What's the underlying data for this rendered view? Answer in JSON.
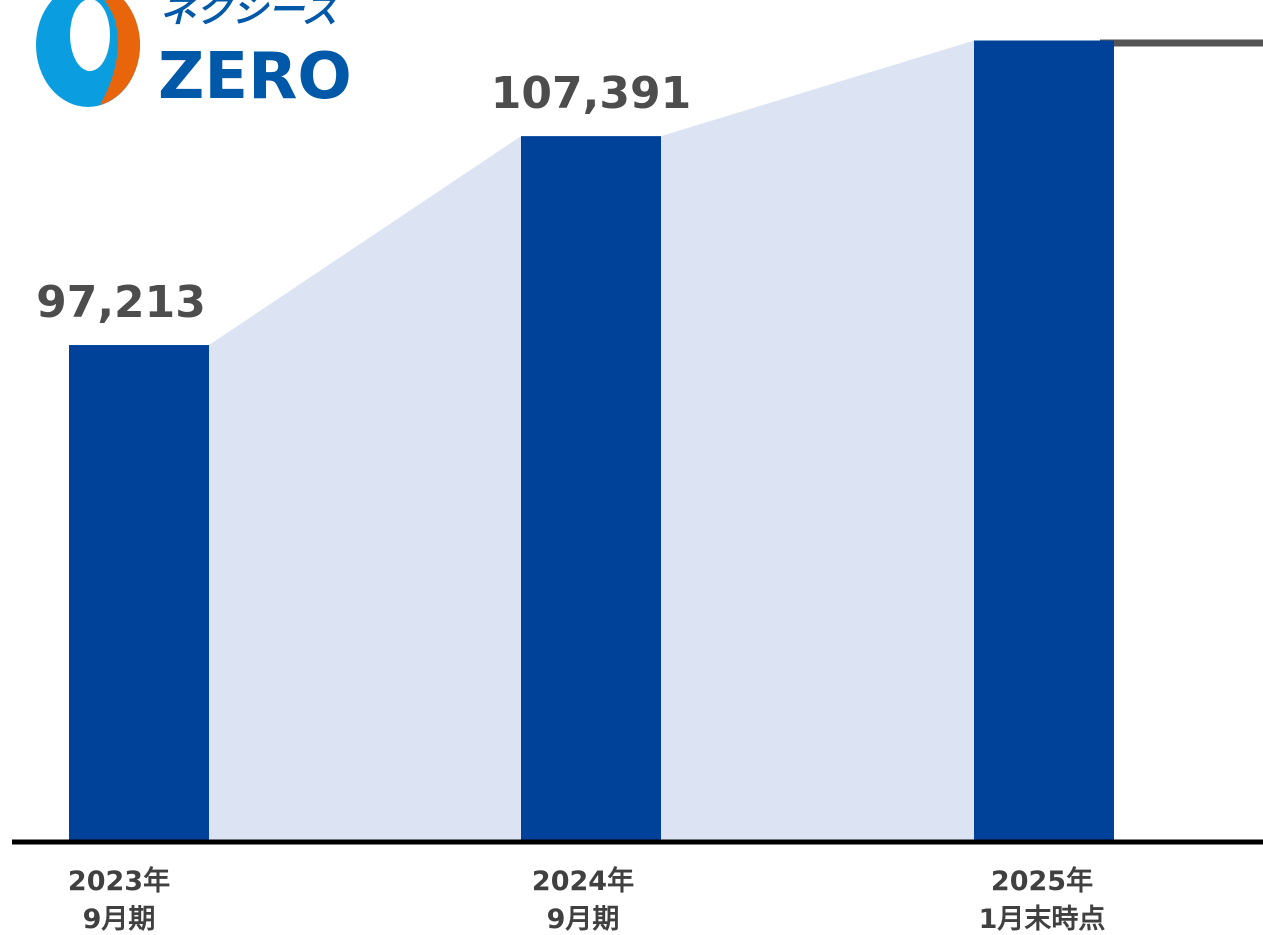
{
  "logo": {
    "katakana": "ネクシーズ",
    "word": "ZERO"
  },
  "chart_data": {
    "type": "bar",
    "categories": [
      [
        "2023年",
        "9月期"
      ],
      [
        "2024年",
        "9月期"
      ],
      [
        "2025年",
        "1月末時点"
      ]
    ],
    "values": [
      97213,
      107391,
      112050
    ],
    "value_labels": [
      "97,213",
      "107,391",
      null
    ],
    "color": "#00429a",
    "area_color": "#dce4f4",
    "ylim": [
      73100,
      113000
    ]
  }
}
